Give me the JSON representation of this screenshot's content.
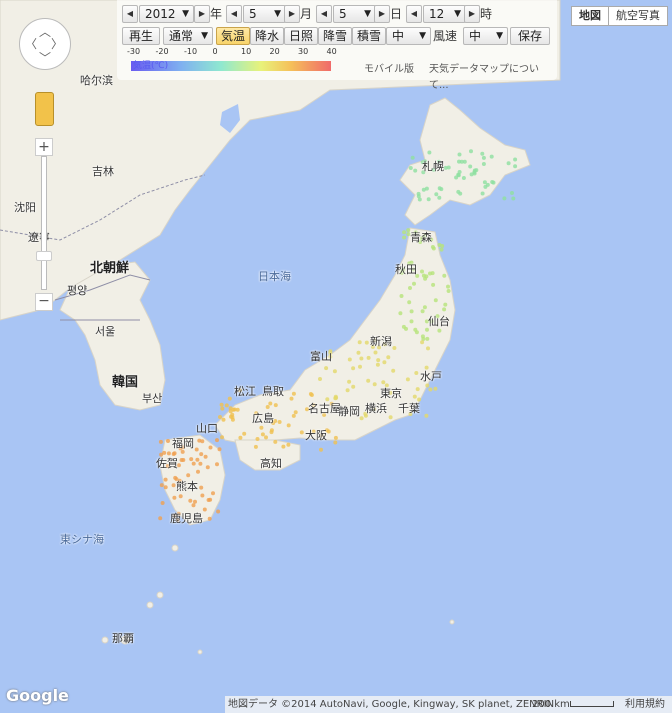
{
  "controls": {
    "year": "2012",
    "year_unit": "年",
    "month": "5",
    "month_unit": "月",
    "day": "5",
    "day_unit": "日",
    "hour": "12",
    "hour_unit": "時",
    "play_label": "再生",
    "speed_value": "通常",
    "tabs": [
      "気温",
      "降水",
      "日照",
      "降雪",
      "積雪"
    ],
    "active_tab": "気温",
    "size_value": "中",
    "wind_label": "風速",
    "wind_value": "中",
    "save_label": "保存"
  },
  "legend": {
    "ticks": [
      "-30",
      "-20",
      "-10",
      "0",
      "10",
      "20",
      "30",
      "40"
    ],
    "unit_label": "気温(℃)",
    "mobile_link": "モバイル版",
    "about_link": "天気データマップについて..."
  },
  "map_type": {
    "map_label": "地図",
    "satellite_label": "航空写真"
  },
  "map_labels": {
    "harbin": "哈尔滨",
    "jilin": "吉林",
    "shenyang": "沈阳",
    "liaoning": "遼寧",
    "north_korea": "北朝鮮",
    "pyongyang": "평양",
    "seoul": "서울",
    "south_korea": "韓国",
    "busan": "부산",
    "sea_of_japan": "日本海",
    "east_china_sea": "東シナ海",
    "sapporo": "札幌",
    "aomori": "青森",
    "akita": "秋田",
    "sendai": "仙台",
    "niigata": "新潟",
    "toyama": "富山",
    "mito": "水戸",
    "tokyo": "東京",
    "yokohama": "横浜",
    "chiba": "千葉",
    "shizuoka": "静岡",
    "nagoya": "名古屋",
    "osaka": "大阪",
    "matsue": "松江",
    "tottori": "鳥取",
    "yamaguchi": "山口",
    "hiroshima": "広島",
    "kochi": "高知",
    "fukuoka": "福岡",
    "saga": "佐賀",
    "kumamoto": "熊本",
    "kagoshima": "鹿児島",
    "naha": "那覇"
  },
  "footer": {
    "attribution": "地図データ ©2014 AutoNavi, Google, Kingway, SK planet, ZENRIN",
    "scale": "200 km",
    "terms": "利用規約"
  },
  "colors": {
    "sea": "#a9c5f4",
    "land": "#f1efe6",
    "legend_low": "#5a5cf0",
    "legend_high": "#f05a5a"
  }
}
